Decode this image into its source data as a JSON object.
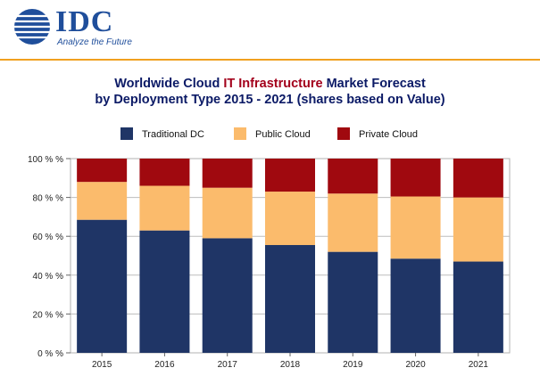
{
  "header": {
    "logo_text": "IDC",
    "tagline": "Analyze the Future",
    "colors": {
      "brand": "#1f4e9b",
      "rule": "#f0a020"
    }
  },
  "chart_data": {
    "type": "bar",
    "stacked": true,
    "title_line1": {
      "pre": "Worldwide Cloud ",
      "highlight": "IT Infrastructure",
      "post": " Market Forecast"
    },
    "title_line2": "by Deployment Type  2015 - 2021 (shares based on Value)",
    "categories": [
      "2015",
      "2016",
      "2017",
      "2018",
      "2019",
      "2020",
      "2021"
    ],
    "series": [
      {
        "name": "Traditional DC",
        "color": "#1f3566",
        "values": [
          68.5,
          63,
          59,
          55.5,
          52,
          48.5,
          47
        ]
      },
      {
        "name": "Public Cloud",
        "color": "#fbbb6c",
        "values": [
          19.5,
          23,
          26,
          27.5,
          30,
          32,
          33
        ]
      },
      {
        "name": "Private Cloud",
        "color": "#a0090f",
        "values": [
          12,
          14,
          15,
          17,
          18,
          19.5,
          20
        ]
      }
    ],
    "y_ticks": [
      "0 % %",
      "20 % %",
      "40 % %",
      "60 % %",
      "80 % %",
      "100 % %"
    ],
    "y_tick_values": [
      0,
      20,
      40,
      60,
      80,
      100
    ],
    "ylim": [
      0,
      100
    ],
    "grid": true,
    "legend_position": "top"
  }
}
